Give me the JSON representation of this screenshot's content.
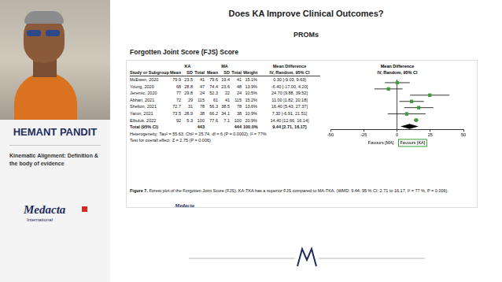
{
  "speaker": {
    "name": "HEMANT PANDIT",
    "talk": "Kinematic Alignment: Definition & the body of evidence",
    "logo": "Medacta",
    "logo_sub": "International"
  },
  "slide": {
    "title": "Does KA Improve Clinical Outcomes?",
    "subtitle": "PROMs",
    "section": "Forgotten Joint Score (FJS) Score",
    "logo": "Medacta",
    "table": {
      "group_headers": {
        "ka": "KA",
        "ma": "MA",
        "md": "Mean Difference",
        "plot": "Mean Difference"
      },
      "columns": [
        "Study or Subgroup",
        "Mean",
        "SD",
        "Total",
        "Mean",
        "SD",
        "Total",
        "Weight",
        "IV, Random, 95% CI",
        "IV, Random, 95% CI"
      ],
      "rows": [
        [
          "McEwen, 2020",
          "79.9",
          "23.5",
          "41",
          "79.6",
          "19.4",
          "41",
          "15.1%",
          "0.30 [-9.03, 9.63]"
        ],
        [
          "Young, 2020",
          "68",
          "28.8",
          "47",
          "74.4",
          "23.6",
          "48",
          "13.9%",
          "-6.40 [-17.00, 4.20]"
        ],
        [
          "Jeremic, 2020",
          "77",
          "29.8",
          "24",
          "52.3",
          "22",
          "24",
          "10.5%",
          "24.70 [9.88, 39.52]"
        ],
        [
          "Abhari, 2021",
          "72",
          "29",
          "115",
          "61",
          "41",
          "115",
          "15.2%",
          "11.00 [1.82, 20.18]"
        ],
        [
          "Shelton, 2021",
          "72.7",
          "31",
          "78",
          "56.3",
          "38.5",
          "78",
          "13.6%",
          "16.40 [5.43, 27.37]"
        ],
        [
          "Yaron, 2021",
          "73.5",
          "28.9",
          "38",
          "66.2",
          "34.1",
          "38",
          "10.9%",
          "7.30 [-6.91, 21.51]"
        ],
        [
          "Elbuluk, 2022",
          "92",
          "5.3",
          "100",
          "77.6",
          "7.1",
          "100",
          "20.9%",
          "14.40 [12.66, 16.14]"
        ]
      ],
      "total": [
        "Total (95% CI)",
        null,
        null,
        "443",
        null,
        null,
        "444",
        "100.0%",
        "9.44 [2.71, 16.17]"
      ],
      "footnotes": [
        "Heterogeneity: Tau² = 55.63; Chi² = 25.74, df = 6 (P = 0.0002); I² = 77%",
        "Test for overall effect: Z = 2.75 (P = 0.006)"
      ]
    },
    "caption": {
      "label": "Figure 7.",
      "text": "Forest plot of the Forgotten Joint Score (FJS). KA-TKA has a superior FJS compared to MA-TKA. (WMD: 9.44, 95 % CI: 2.71 to 16.17, I² = 77 %, P = 0.006)."
    }
  },
  "chart_data": {
    "type": "forest",
    "values": [
      0.3,
      -6.4,
      24.7,
      11.0,
      16.4,
      7.3,
      14.4
    ],
    "ci": [
      [
        -9.03,
        9.63
      ],
      [
        -17.0,
        4.2
      ],
      [
        9.88,
        39.52
      ],
      [
        1.82,
        20.18
      ],
      [
        5.43,
        27.37
      ],
      [
        -6.91,
        21.51
      ],
      [
        12.66,
        16.14
      ]
    ],
    "pooled": {
      "value": 9.44,
      "ci": [
        2.71,
        16.17
      ]
    },
    "color": "#3a9e3a",
    "xlim": [
      -50,
      50
    ],
    "xticks": [
      -50,
      -25,
      0,
      25,
      50
    ],
    "grid": false,
    "tick_labels": "x",
    "annotations": [
      "Favours [MA]",
      "Favours [KA]"
    ]
  }
}
